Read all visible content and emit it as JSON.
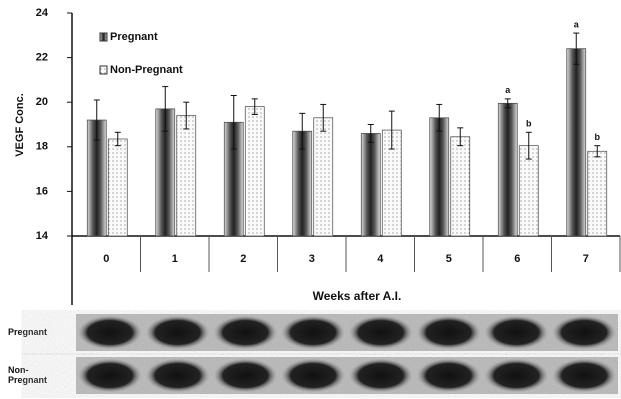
{
  "chart_data": {
    "type": "bar",
    "y_label": "VEGF Conc.",
    "x_label": "Weeks after A.I.",
    "categories": [
      "0",
      "1",
      "2",
      "3",
      "4",
      "5",
      "6",
      "7"
    ],
    "series": [
      {
        "name": "Pregnant",
        "color": "#333333",
        "values": [
          19.2,
          19.7,
          19.1,
          18.7,
          18.6,
          19.3,
          19.95,
          22.4
        ],
        "errors": [
          0.9,
          1.0,
          1.2,
          0.8,
          0.4,
          0.6,
          0.2,
          0.7
        ],
        "letters": [
          null,
          null,
          null,
          null,
          null,
          null,
          "a",
          "a"
        ]
      },
      {
        "name": "Non-Pregnant",
        "color": "#f2f2f2",
        "values": [
          18.35,
          19.4,
          19.8,
          19.3,
          18.75,
          18.45,
          18.05,
          17.8
        ],
        "errors": [
          0.3,
          0.6,
          0.35,
          0.6,
          0.85,
          0.4,
          0.6,
          0.25
        ],
        "letters": [
          null,
          null,
          null,
          null,
          null,
          null,
          "b",
          "b"
        ]
      }
    ],
    "ylim": [
      14,
      24
    ],
    "yticks": [
      14,
      16,
      18,
      20,
      22,
      24
    ],
    "legend": "upper left"
  },
  "blot": {
    "rows": [
      [
        "Pregnant"
      ],
      [
        "Non-",
        "Pregnant"
      ]
    ]
  }
}
